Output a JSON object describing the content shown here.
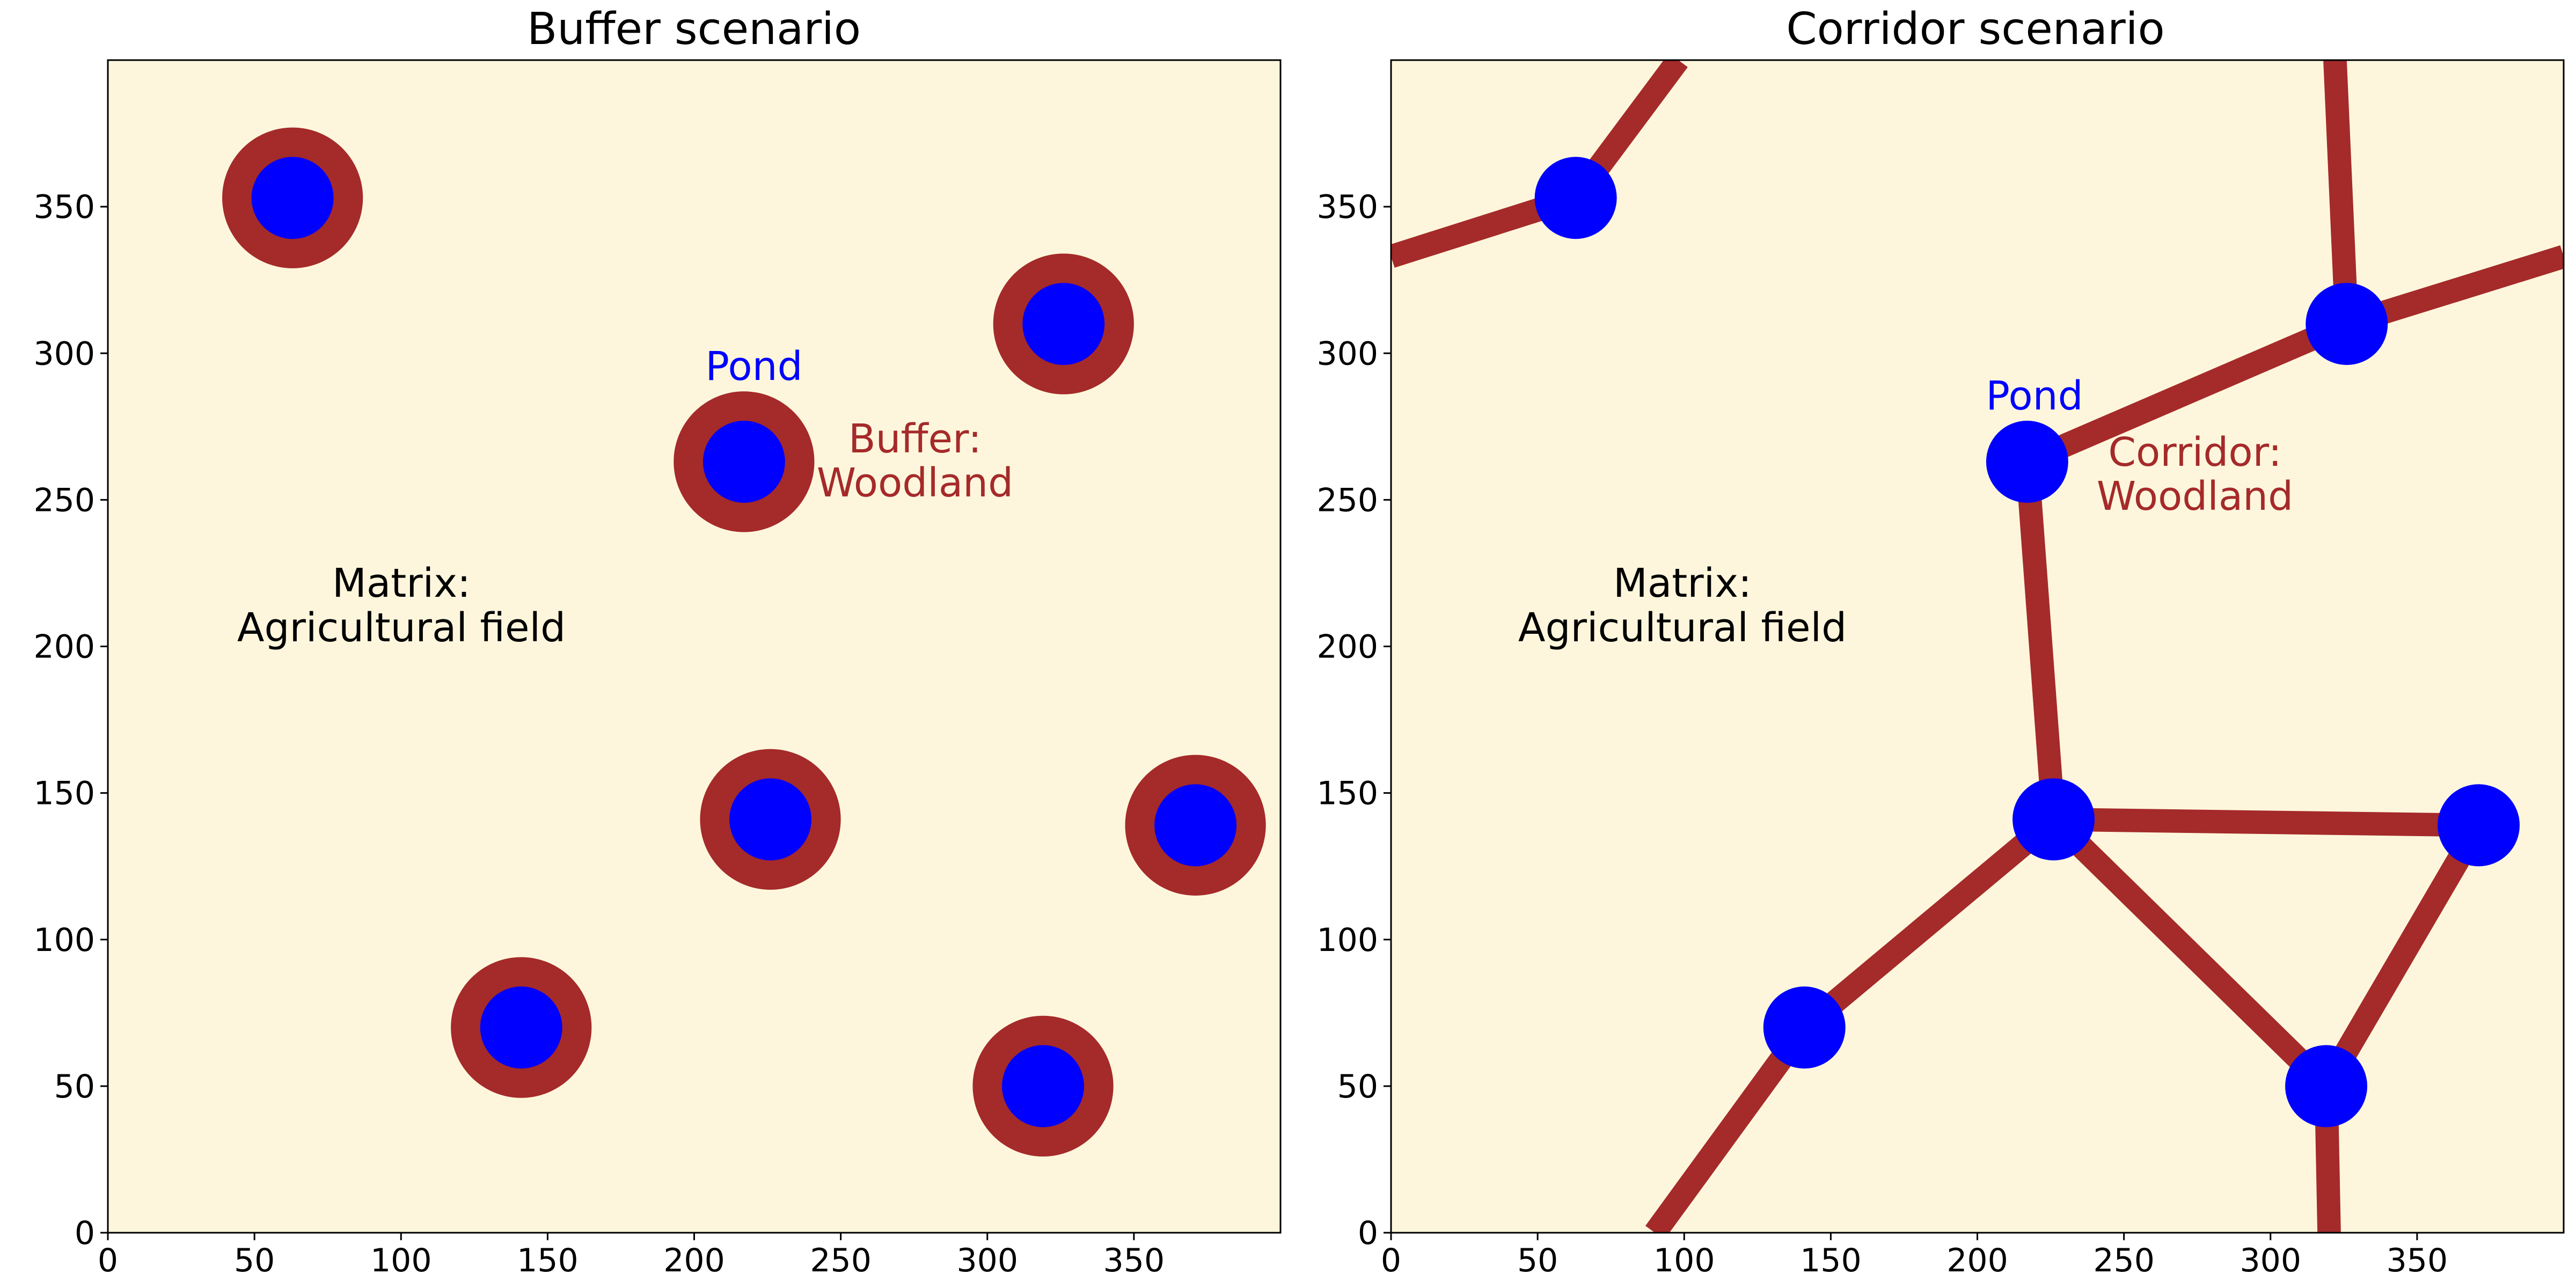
{
  "chart_data": [
    {
      "type": "map",
      "title": "Buffer scenario",
      "xlim": [
        0,
        400
      ],
      "ylim": [
        0,
        400
      ],
      "xticks": [
        0,
        50,
        100,
        150,
        200,
        250,
        300,
        350
      ],
      "yticks": [
        0,
        50,
        100,
        150,
        200,
        250,
        300,
        350
      ],
      "ponds": [
        {
          "x": 63,
          "y": 353
        },
        {
          "x": 326,
          "y": 310
        },
        {
          "x": 217,
          "y": 263
        },
        {
          "x": 226,
          "y": 141
        },
        {
          "x": 371,
          "y": 139
        },
        {
          "x": 141,
          "y": 70
        },
        {
          "x": 319,
          "y": 50
        }
      ],
      "pond_radius": 14,
      "buffer_radius": 24,
      "annotations": {
        "pond_label": "Pond",
        "woodland_label_line1": "Buffer:",
        "woodland_label_line2": "Woodland",
        "matrix_line1": "Matrix:",
        "matrix_line2": "Agricultural field"
      }
    },
    {
      "type": "map",
      "title": "Corridor scenario",
      "xlim": [
        0,
        400
      ],
      "ylim": [
        0,
        400
      ],
      "xticks": [
        0,
        50,
        100,
        150,
        200,
        250,
        300,
        350
      ],
      "yticks": [
        0,
        50,
        100,
        150,
        200,
        250,
        300,
        350
      ],
      "ponds": [
        {
          "x": 63,
          "y": 353
        },
        {
          "x": 326,
          "y": 310
        },
        {
          "x": 217,
          "y": 263
        },
        {
          "x": 226,
          "y": 141
        },
        {
          "x": 371,
          "y": 139
        },
        {
          "x": 141,
          "y": 70
        },
        {
          "x": 319,
          "y": 50
        }
      ],
      "pond_radius": 14,
      "corridor_width": 8,
      "corridors": [
        [
          [
            0,
            333
          ],
          [
            63,
            353
          ]
        ],
        [
          [
            63,
            353
          ],
          [
            98,
            400
          ]
        ],
        [
          [
            322,
            400
          ],
          [
            326,
            310
          ]
        ],
        [
          [
            217,
            263
          ],
          [
            326,
            310
          ]
        ],
        [
          [
            326,
            310
          ],
          [
            400,
            333
          ]
        ],
        [
          [
            217,
            263
          ],
          [
            226,
            141
          ]
        ],
        [
          [
            226,
            141
          ],
          [
            371,
            139
          ]
        ],
        [
          [
            226,
            141
          ],
          [
            141,
            70
          ]
        ],
        [
          [
            226,
            141
          ],
          [
            319,
            50
          ]
        ],
        [
          [
            371,
            139
          ],
          [
            319,
            50
          ]
        ],
        [
          [
            141,
            70
          ],
          [
            90,
            0
          ]
        ],
        [
          [
            319,
            50
          ],
          [
            320,
            0
          ]
        ]
      ],
      "annotations": {
        "pond_label": "Pond",
        "woodland_label_line1": "Corridor:",
        "woodland_label_line2": "Woodland",
        "matrix_line1": "Matrix:",
        "matrix_line2": "Agricultural field"
      }
    }
  ],
  "colors": {
    "matrix": "#fdf6dc",
    "woodland": "#a52a2a",
    "pond": "#0000ff",
    "text": "#000000"
  }
}
